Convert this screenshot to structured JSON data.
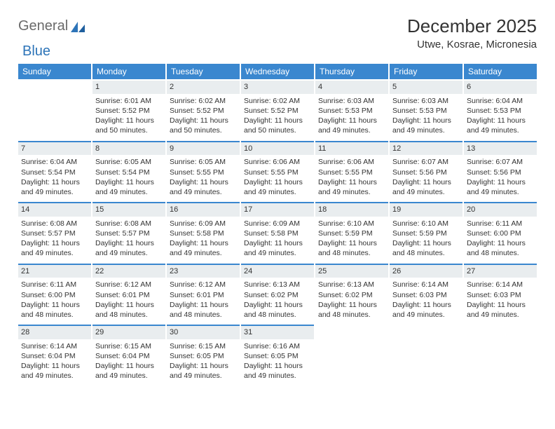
{
  "brand": {
    "part1": "General",
    "part2": "Blue"
  },
  "title": "December 2025",
  "location": "Utwe, Kosrae, Micronesia",
  "colors": {
    "header_bg": "#3a87cf",
    "daynum_bg": "#e9edef",
    "daynum_border": "#3a87cf",
    "text": "#333333",
    "brand_grey": "#6a6a6a",
    "brand_blue": "#2d74b8",
    "background": "#ffffff"
  },
  "fonts": {
    "title_size_pt": 20,
    "location_size_pt": 11,
    "dayhead_size_pt": 9,
    "cell_size_pt": 8
  },
  "weekday_labels": [
    "Sunday",
    "Monday",
    "Tuesday",
    "Wednesday",
    "Thursday",
    "Friday",
    "Saturday"
  ],
  "weeks": [
    [
      {
        "empty": true
      },
      {
        "n": "1",
        "sr": "Sunrise: 6:01 AM",
        "ss": "Sunset: 5:52 PM",
        "d1": "Daylight: 11 hours",
        "d2": "and 50 minutes."
      },
      {
        "n": "2",
        "sr": "Sunrise: 6:02 AM",
        "ss": "Sunset: 5:52 PM",
        "d1": "Daylight: 11 hours",
        "d2": "and 50 minutes."
      },
      {
        "n": "3",
        "sr": "Sunrise: 6:02 AM",
        "ss": "Sunset: 5:52 PM",
        "d1": "Daylight: 11 hours",
        "d2": "and 50 minutes."
      },
      {
        "n": "4",
        "sr": "Sunrise: 6:03 AM",
        "ss": "Sunset: 5:53 PM",
        "d1": "Daylight: 11 hours",
        "d2": "and 49 minutes."
      },
      {
        "n": "5",
        "sr": "Sunrise: 6:03 AM",
        "ss": "Sunset: 5:53 PM",
        "d1": "Daylight: 11 hours",
        "d2": "and 49 minutes."
      },
      {
        "n": "6",
        "sr": "Sunrise: 6:04 AM",
        "ss": "Sunset: 5:53 PM",
        "d1": "Daylight: 11 hours",
        "d2": "and 49 minutes."
      }
    ],
    [
      {
        "n": "7",
        "sr": "Sunrise: 6:04 AM",
        "ss": "Sunset: 5:54 PM",
        "d1": "Daylight: 11 hours",
        "d2": "and 49 minutes."
      },
      {
        "n": "8",
        "sr": "Sunrise: 6:05 AM",
        "ss": "Sunset: 5:54 PM",
        "d1": "Daylight: 11 hours",
        "d2": "and 49 minutes."
      },
      {
        "n": "9",
        "sr": "Sunrise: 6:05 AM",
        "ss": "Sunset: 5:55 PM",
        "d1": "Daylight: 11 hours",
        "d2": "and 49 minutes."
      },
      {
        "n": "10",
        "sr": "Sunrise: 6:06 AM",
        "ss": "Sunset: 5:55 PM",
        "d1": "Daylight: 11 hours",
        "d2": "and 49 minutes."
      },
      {
        "n": "11",
        "sr": "Sunrise: 6:06 AM",
        "ss": "Sunset: 5:55 PM",
        "d1": "Daylight: 11 hours",
        "d2": "and 49 minutes."
      },
      {
        "n": "12",
        "sr": "Sunrise: 6:07 AM",
        "ss": "Sunset: 5:56 PM",
        "d1": "Daylight: 11 hours",
        "d2": "and 49 minutes."
      },
      {
        "n": "13",
        "sr": "Sunrise: 6:07 AM",
        "ss": "Sunset: 5:56 PM",
        "d1": "Daylight: 11 hours",
        "d2": "and 49 minutes."
      }
    ],
    [
      {
        "n": "14",
        "sr": "Sunrise: 6:08 AM",
        "ss": "Sunset: 5:57 PM",
        "d1": "Daylight: 11 hours",
        "d2": "and 49 minutes."
      },
      {
        "n": "15",
        "sr": "Sunrise: 6:08 AM",
        "ss": "Sunset: 5:57 PM",
        "d1": "Daylight: 11 hours",
        "d2": "and 49 minutes."
      },
      {
        "n": "16",
        "sr": "Sunrise: 6:09 AM",
        "ss": "Sunset: 5:58 PM",
        "d1": "Daylight: 11 hours",
        "d2": "and 49 minutes."
      },
      {
        "n": "17",
        "sr": "Sunrise: 6:09 AM",
        "ss": "Sunset: 5:58 PM",
        "d1": "Daylight: 11 hours",
        "d2": "and 49 minutes."
      },
      {
        "n": "18",
        "sr": "Sunrise: 6:10 AM",
        "ss": "Sunset: 5:59 PM",
        "d1": "Daylight: 11 hours",
        "d2": "and 48 minutes."
      },
      {
        "n": "19",
        "sr": "Sunrise: 6:10 AM",
        "ss": "Sunset: 5:59 PM",
        "d1": "Daylight: 11 hours",
        "d2": "and 48 minutes."
      },
      {
        "n": "20",
        "sr": "Sunrise: 6:11 AM",
        "ss": "Sunset: 6:00 PM",
        "d1": "Daylight: 11 hours",
        "d2": "and 48 minutes."
      }
    ],
    [
      {
        "n": "21",
        "sr": "Sunrise: 6:11 AM",
        "ss": "Sunset: 6:00 PM",
        "d1": "Daylight: 11 hours",
        "d2": "and 48 minutes."
      },
      {
        "n": "22",
        "sr": "Sunrise: 6:12 AM",
        "ss": "Sunset: 6:01 PM",
        "d1": "Daylight: 11 hours",
        "d2": "and 48 minutes."
      },
      {
        "n": "23",
        "sr": "Sunrise: 6:12 AM",
        "ss": "Sunset: 6:01 PM",
        "d1": "Daylight: 11 hours",
        "d2": "and 48 minutes."
      },
      {
        "n": "24",
        "sr": "Sunrise: 6:13 AM",
        "ss": "Sunset: 6:02 PM",
        "d1": "Daylight: 11 hours",
        "d2": "and 48 minutes."
      },
      {
        "n": "25",
        "sr": "Sunrise: 6:13 AM",
        "ss": "Sunset: 6:02 PM",
        "d1": "Daylight: 11 hours",
        "d2": "and 48 minutes."
      },
      {
        "n": "26",
        "sr": "Sunrise: 6:14 AM",
        "ss": "Sunset: 6:03 PM",
        "d1": "Daylight: 11 hours",
        "d2": "and 49 minutes."
      },
      {
        "n": "27",
        "sr": "Sunrise: 6:14 AM",
        "ss": "Sunset: 6:03 PM",
        "d1": "Daylight: 11 hours",
        "d2": "and 49 minutes."
      }
    ],
    [
      {
        "n": "28",
        "sr": "Sunrise: 6:14 AM",
        "ss": "Sunset: 6:04 PM",
        "d1": "Daylight: 11 hours",
        "d2": "and 49 minutes."
      },
      {
        "n": "29",
        "sr": "Sunrise: 6:15 AM",
        "ss": "Sunset: 6:04 PM",
        "d1": "Daylight: 11 hours",
        "d2": "and 49 minutes."
      },
      {
        "n": "30",
        "sr": "Sunrise: 6:15 AM",
        "ss": "Sunset: 6:05 PM",
        "d1": "Daylight: 11 hours",
        "d2": "and 49 minutes."
      },
      {
        "n": "31",
        "sr": "Sunrise: 6:16 AM",
        "ss": "Sunset: 6:05 PM",
        "d1": "Daylight: 11 hours",
        "d2": "and 49 minutes."
      },
      {
        "empty": true
      },
      {
        "empty": true
      },
      {
        "empty": true
      }
    ]
  ]
}
